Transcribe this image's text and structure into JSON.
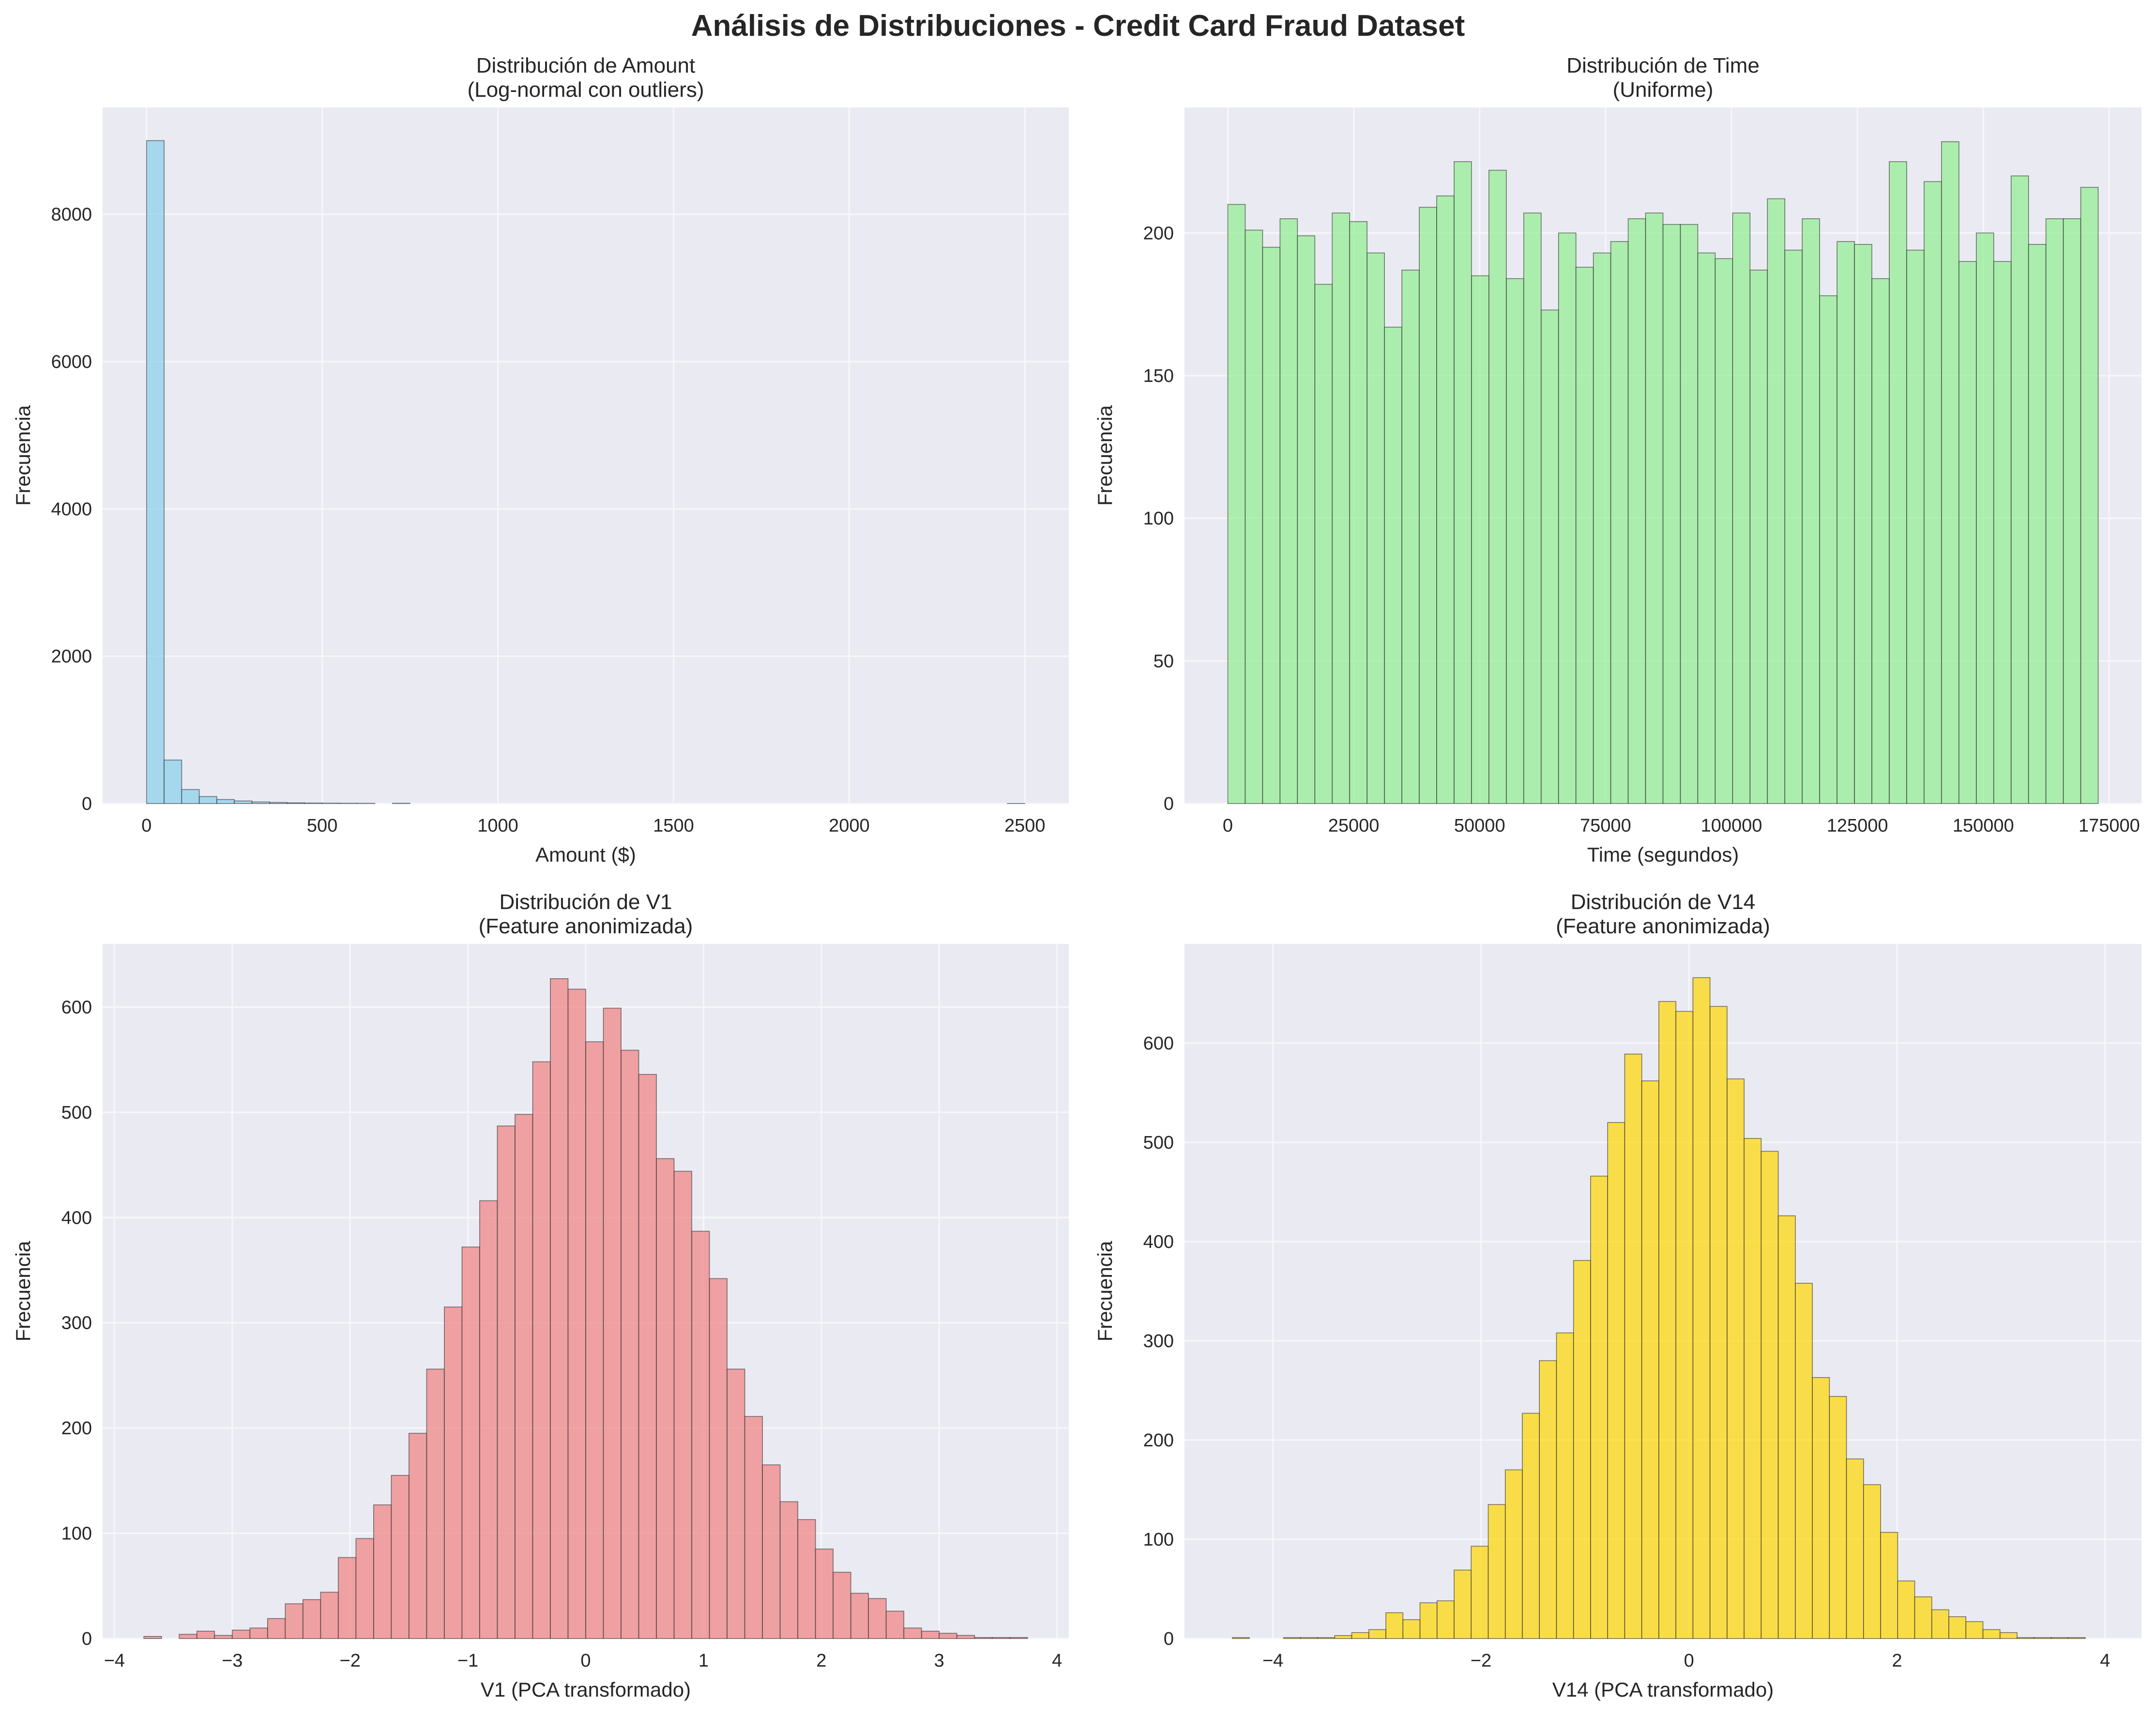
{
  "figure": {
    "suptitle": "Análisis de Distribuciones - Credit Card Fraud Dataset"
  },
  "chart_data": [
    {
      "type": "bar",
      "title": "Distribución de Amount",
      "subtitle": "(Log-normal con outliers)",
      "xlabel": "Amount ($)",
      "ylabel": "Frecuencia",
      "color": "#87ceeb",
      "grid": true,
      "xlim": [
        -125,
        2625
      ],
      "ylim": [
        0,
        9450
      ],
      "xticks": [
        0,
        500,
        1000,
        1500,
        2000,
        2500
      ],
      "yticks": [
        0,
        2000,
        4000,
        6000,
        8000
      ],
      "bin_start": 0,
      "bin_width": 50,
      "values": [
        9000,
        590,
        190,
        95,
        55,
        35,
        22,
        15,
        10,
        7,
        5,
        4,
        3,
        0,
        4,
        0,
        0,
        0,
        0,
        0,
        0,
        0,
        0,
        0,
        0,
        0,
        0,
        0,
        0,
        0,
        0,
        0,
        0,
        0,
        0,
        0,
        0,
        0,
        0,
        0,
        0,
        0,
        0,
        0,
        0,
        0,
        0,
        0,
        0,
        1
      ]
    },
    {
      "type": "bar",
      "title": "Distribución de Time",
      "subtitle": "(Uniforme)",
      "xlabel": "Time (segundos)",
      "ylabel": "Frecuencia",
      "color": "#90ee90",
      "grid": true,
      "xlim": [
        -8600,
        181400
      ],
      "ylim": [
        0,
        244
      ],
      "xticks": [
        0,
        25000,
        50000,
        75000,
        100000,
        125000,
        150000,
        175000
      ],
      "yticks": [
        0,
        50,
        100,
        150,
        200
      ],
      "bin_start": 0,
      "bin_width": 3456,
      "values": [
        210,
        201,
        195,
        205,
        199,
        182,
        207,
        204,
        193,
        167,
        187,
        209,
        213,
        225,
        185,
        222,
        184,
        207,
        173,
        200,
        188,
        193,
        197,
        205,
        207,
        203,
        203,
        193,
        191,
        207,
        187,
        212,
        194,
        205,
        178,
        197,
        196,
        184,
        225,
        194,
        218,
        232,
        190,
        200,
        190,
        220,
        196,
        205,
        205,
        216
      ]
    },
    {
      "type": "bar",
      "title": "Distribución de V1",
      "subtitle": "(Feature anonimizada)",
      "xlabel": "V1 (PCA transformado)",
      "ylabel": "Frecuencia",
      "color": "#f08080",
      "grid": true,
      "xlim": [
        -4.1,
        4.1
      ],
      "ylim": [
        0,
        660
      ],
      "xticks": [
        -4,
        -3,
        -2,
        -1,
        0,
        1,
        2,
        3,
        4
      ],
      "yticks": [
        0,
        100,
        200,
        300,
        400,
        500,
        600
      ],
      "bin_start": -3.75,
      "bin_width": 0.15,
      "values": [
        2,
        0,
        4,
        7,
        3,
        8,
        10,
        19,
        33,
        37,
        44,
        77,
        95,
        127,
        155,
        195,
        256,
        315,
        372,
        416,
        487,
        498,
        548,
        627,
        617,
        567,
        599,
        559,
        536,
        456,
        444,
        387,
        342,
        256,
        211,
        165,
        130,
        113,
        85,
        63,
        43,
        38,
        26,
        10,
        7,
        5,
        3,
        1,
        1,
        1
      ]
    },
    {
      "type": "bar",
      "title": "Distribución de V14",
      "subtitle": "(Feature anonimizada)",
      "xlabel": "V14 (PCA transformado)",
      "ylabel": "Frecuencia",
      "color": "#ffd700",
      "grid": true,
      "xlim": [
        -4.85,
        4.35
      ],
      "ylim": [
        0,
        700
      ],
      "xticks": [
        -4,
        -2,
        0,
        2,
        4
      ],
      "yticks": [
        0,
        100,
        200,
        300,
        400,
        500,
        600
      ],
      "bin_start": -4.39,
      "bin_width": 0.164,
      "values": [
        1,
        0,
        0,
        1,
        1,
        1,
        3,
        6,
        9,
        26,
        19,
        36,
        38,
        69,
        93,
        135,
        170,
        227,
        280,
        308,
        381,
        466,
        520,
        589,
        562,
        642,
        632,
        666,
        637,
        564,
        504,
        491,
        426,
        358,
        263,
        244,
        181,
        155,
        107,
        58,
        42,
        29,
        22,
        17,
        9,
        6,
        1,
        1,
        1,
        1
      ]
    }
  ]
}
